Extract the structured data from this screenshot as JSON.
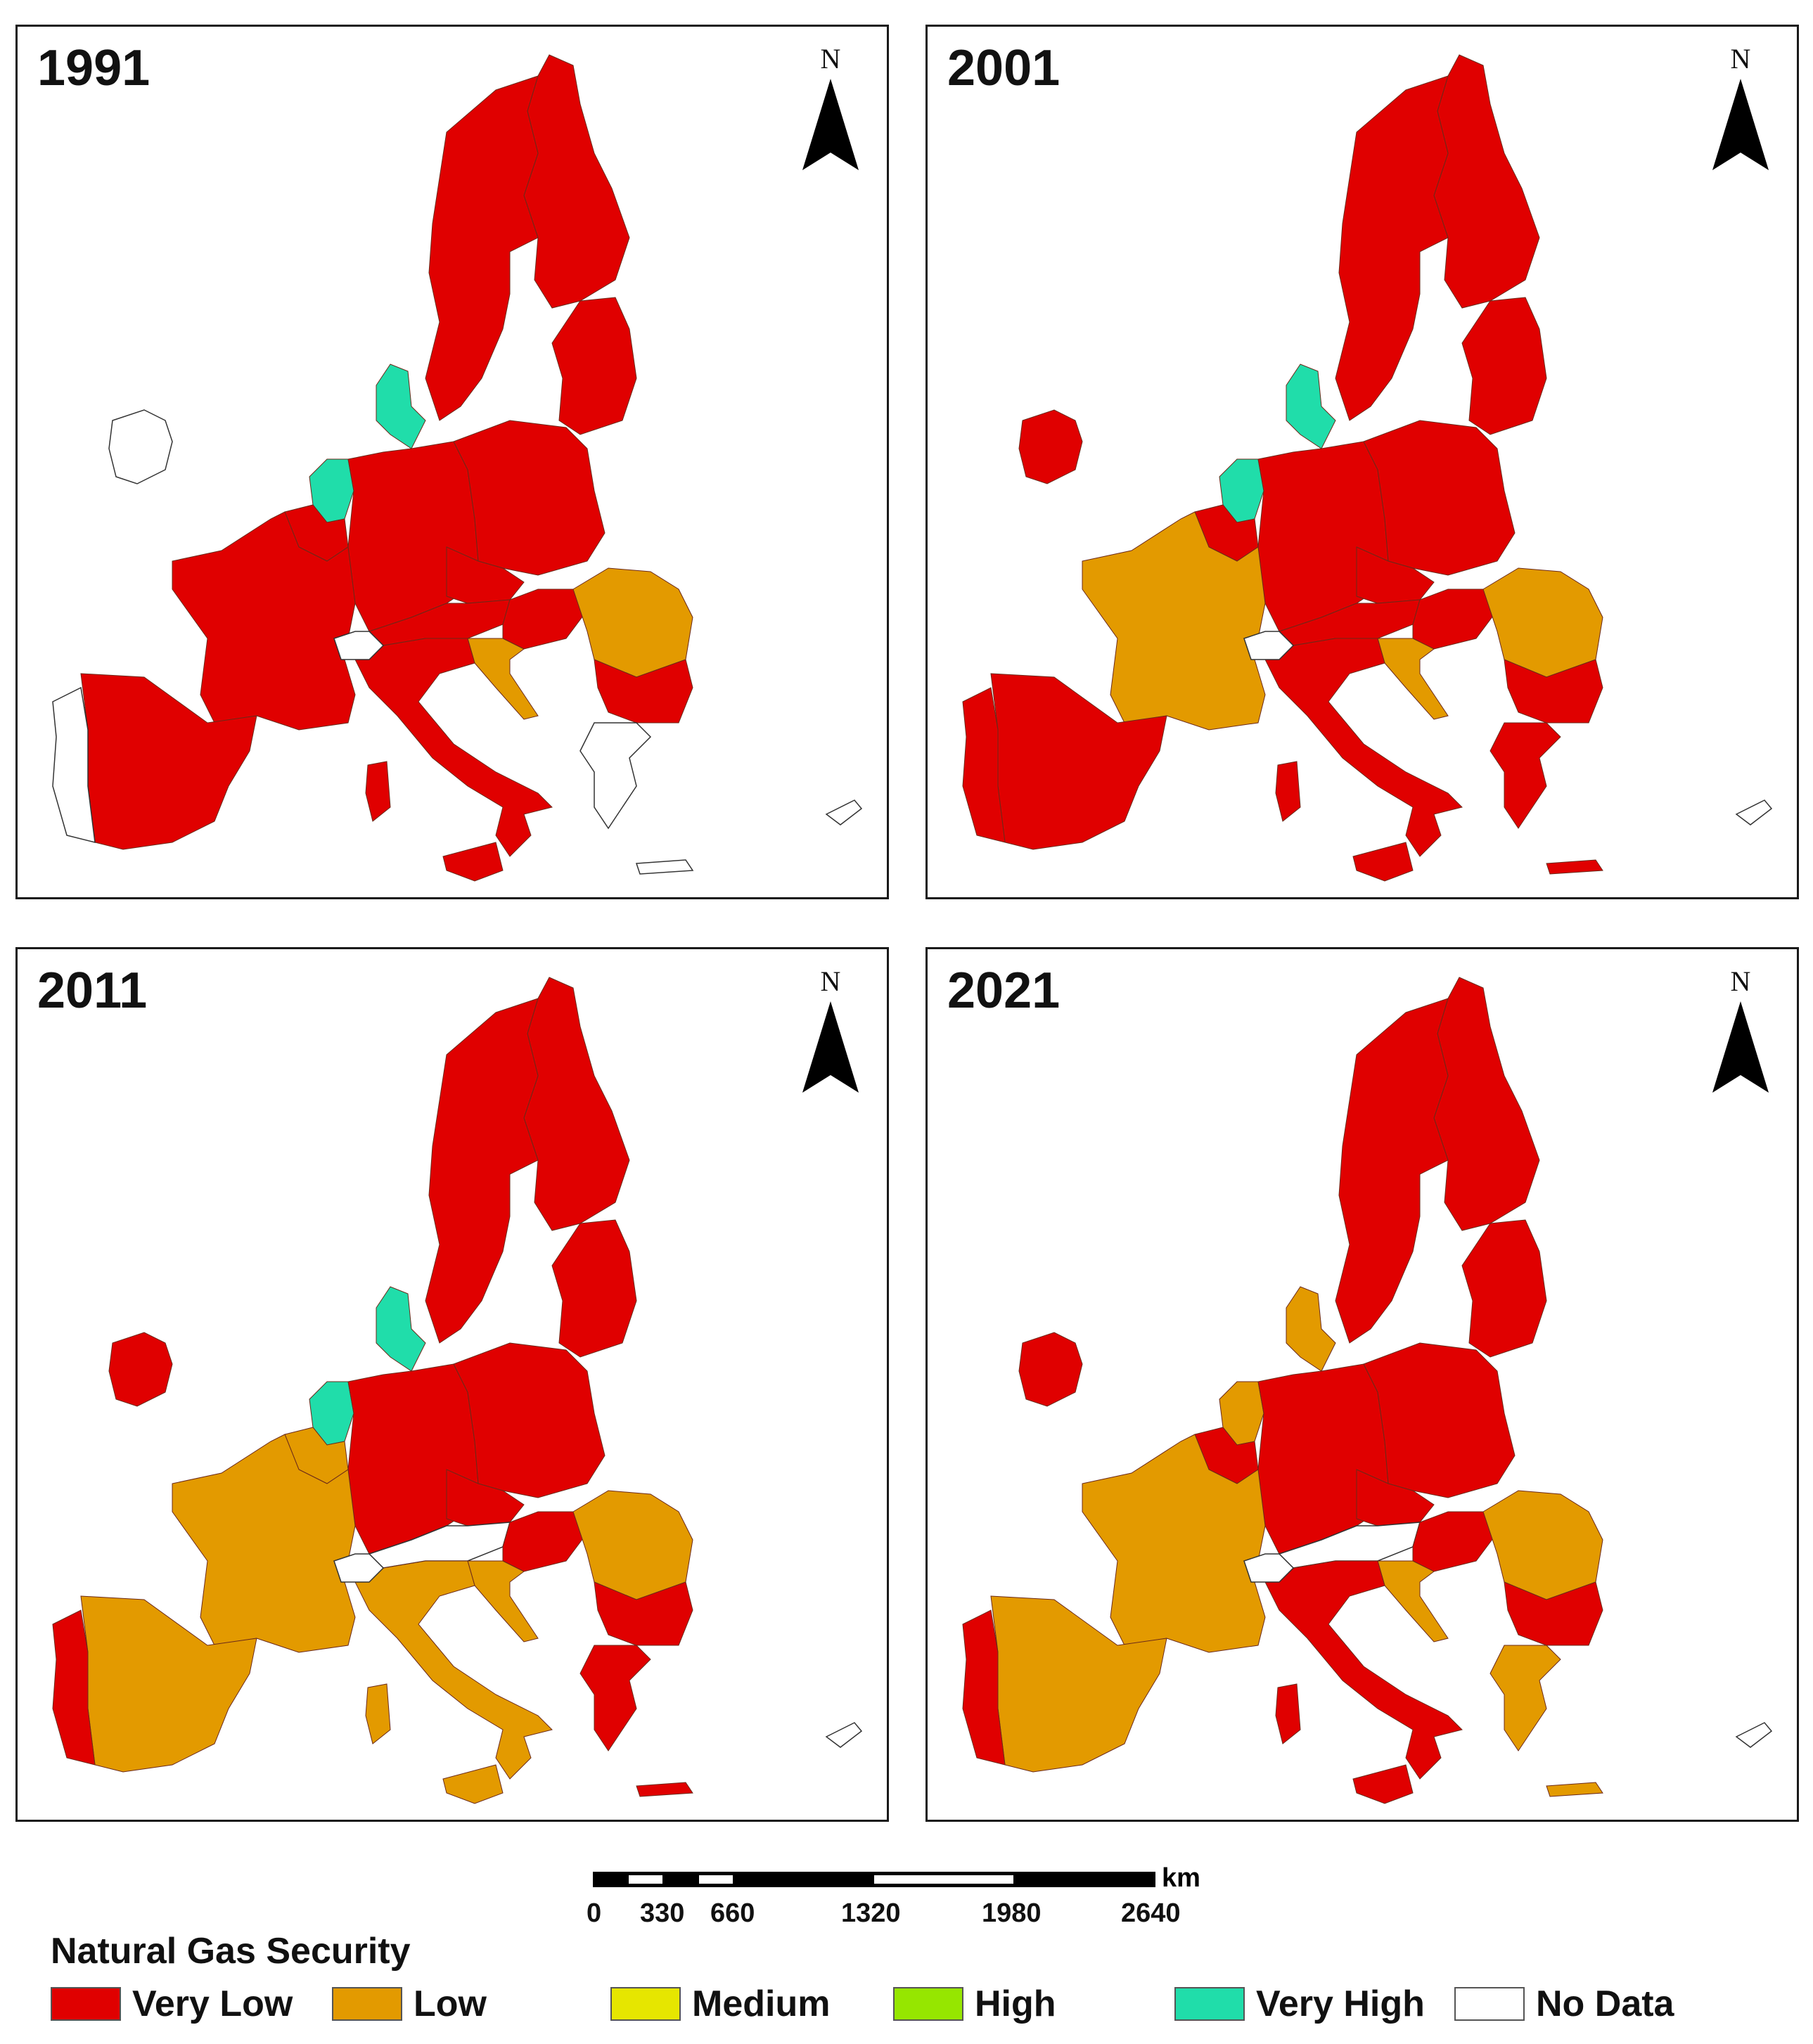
{
  "colors": {
    "very_low": "#E00000",
    "low": "#E39A00",
    "medium": "#E6E600",
    "high": "#96E600",
    "very_high": "#20DDAA",
    "no_data": "#FFFFFF"
  },
  "north_label": "N",
  "panels": [
    {
      "year": "1991",
      "countries": {
        "ireland": "no_data",
        "portugal": "no_data",
        "spain": "very_low",
        "france": "very_low",
        "belgium": "very_low",
        "netherlands": "very_high",
        "denmark": "very_high",
        "germany": "very_low",
        "poland": "very_low",
        "czechia": "very_low",
        "austria": "very_low",
        "hungary": "very_low",
        "italy": "very_low",
        "croatia": "low",
        "romania": "low",
        "bulgaria": "very_low",
        "greece": "no_data",
        "cyprus": "no_data",
        "sweden": "very_low",
        "finland": "very_low",
        "baltics": "very_low"
      }
    },
    {
      "year": "2001",
      "countries": {
        "ireland": "very_low",
        "portugal": "very_low",
        "spain": "very_low",
        "france": "low",
        "belgium": "very_low",
        "netherlands": "very_high",
        "denmark": "very_high",
        "germany": "very_low",
        "poland": "very_low",
        "czechia": "very_low",
        "austria": "very_low",
        "hungary": "very_low",
        "italy": "very_low",
        "croatia": "low",
        "romania": "low",
        "bulgaria": "very_low",
        "greece": "very_low",
        "cyprus": "no_data",
        "sweden": "very_low",
        "finland": "very_low",
        "baltics": "very_low"
      }
    },
    {
      "year": "2011",
      "countries": {
        "ireland": "very_low",
        "portugal": "very_low",
        "spain": "low",
        "france": "low",
        "belgium": "low",
        "netherlands": "very_high",
        "denmark": "very_high",
        "germany": "very_low",
        "poland": "very_low",
        "czechia": "very_low",
        "austria": "no_data",
        "hungary": "very_low",
        "italy": "low",
        "croatia": "low",
        "romania": "low",
        "bulgaria": "very_low",
        "greece": "very_low",
        "cyprus": "no_data",
        "sweden": "very_low",
        "finland": "very_low",
        "baltics": "very_low"
      }
    },
    {
      "year": "2021",
      "countries": {
        "ireland": "very_low",
        "portugal": "very_low",
        "spain": "low",
        "france": "low",
        "belgium": "very_low",
        "netherlands": "low",
        "denmark": "low",
        "germany": "very_low",
        "poland": "very_low",
        "czechia": "very_low",
        "austria": "no_data",
        "hungary": "very_low",
        "italy": "very_low",
        "croatia": "low",
        "romania": "low",
        "bulgaria": "very_low",
        "greece": "low",
        "cyprus": "no_data",
        "sweden": "very_low",
        "finland": "very_low",
        "baltics": "very_low"
      }
    }
  ],
  "scale": {
    "unit": "km",
    "ticks": [
      "0",
      "330",
      "660",
      "1320",
      "1980",
      "2640"
    ]
  },
  "legend": {
    "title": "Natural Gas Security",
    "items": [
      {
        "key": "very_low",
        "label": "Very Low"
      },
      {
        "key": "low",
        "label": "Low"
      },
      {
        "key": "medium",
        "label": "Medium"
      },
      {
        "key": "high",
        "label": "High"
      },
      {
        "key": "very_high",
        "label": "Very High"
      },
      {
        "key": "no_data",
        "label": "No Data"
      }
    ]
  }
}
